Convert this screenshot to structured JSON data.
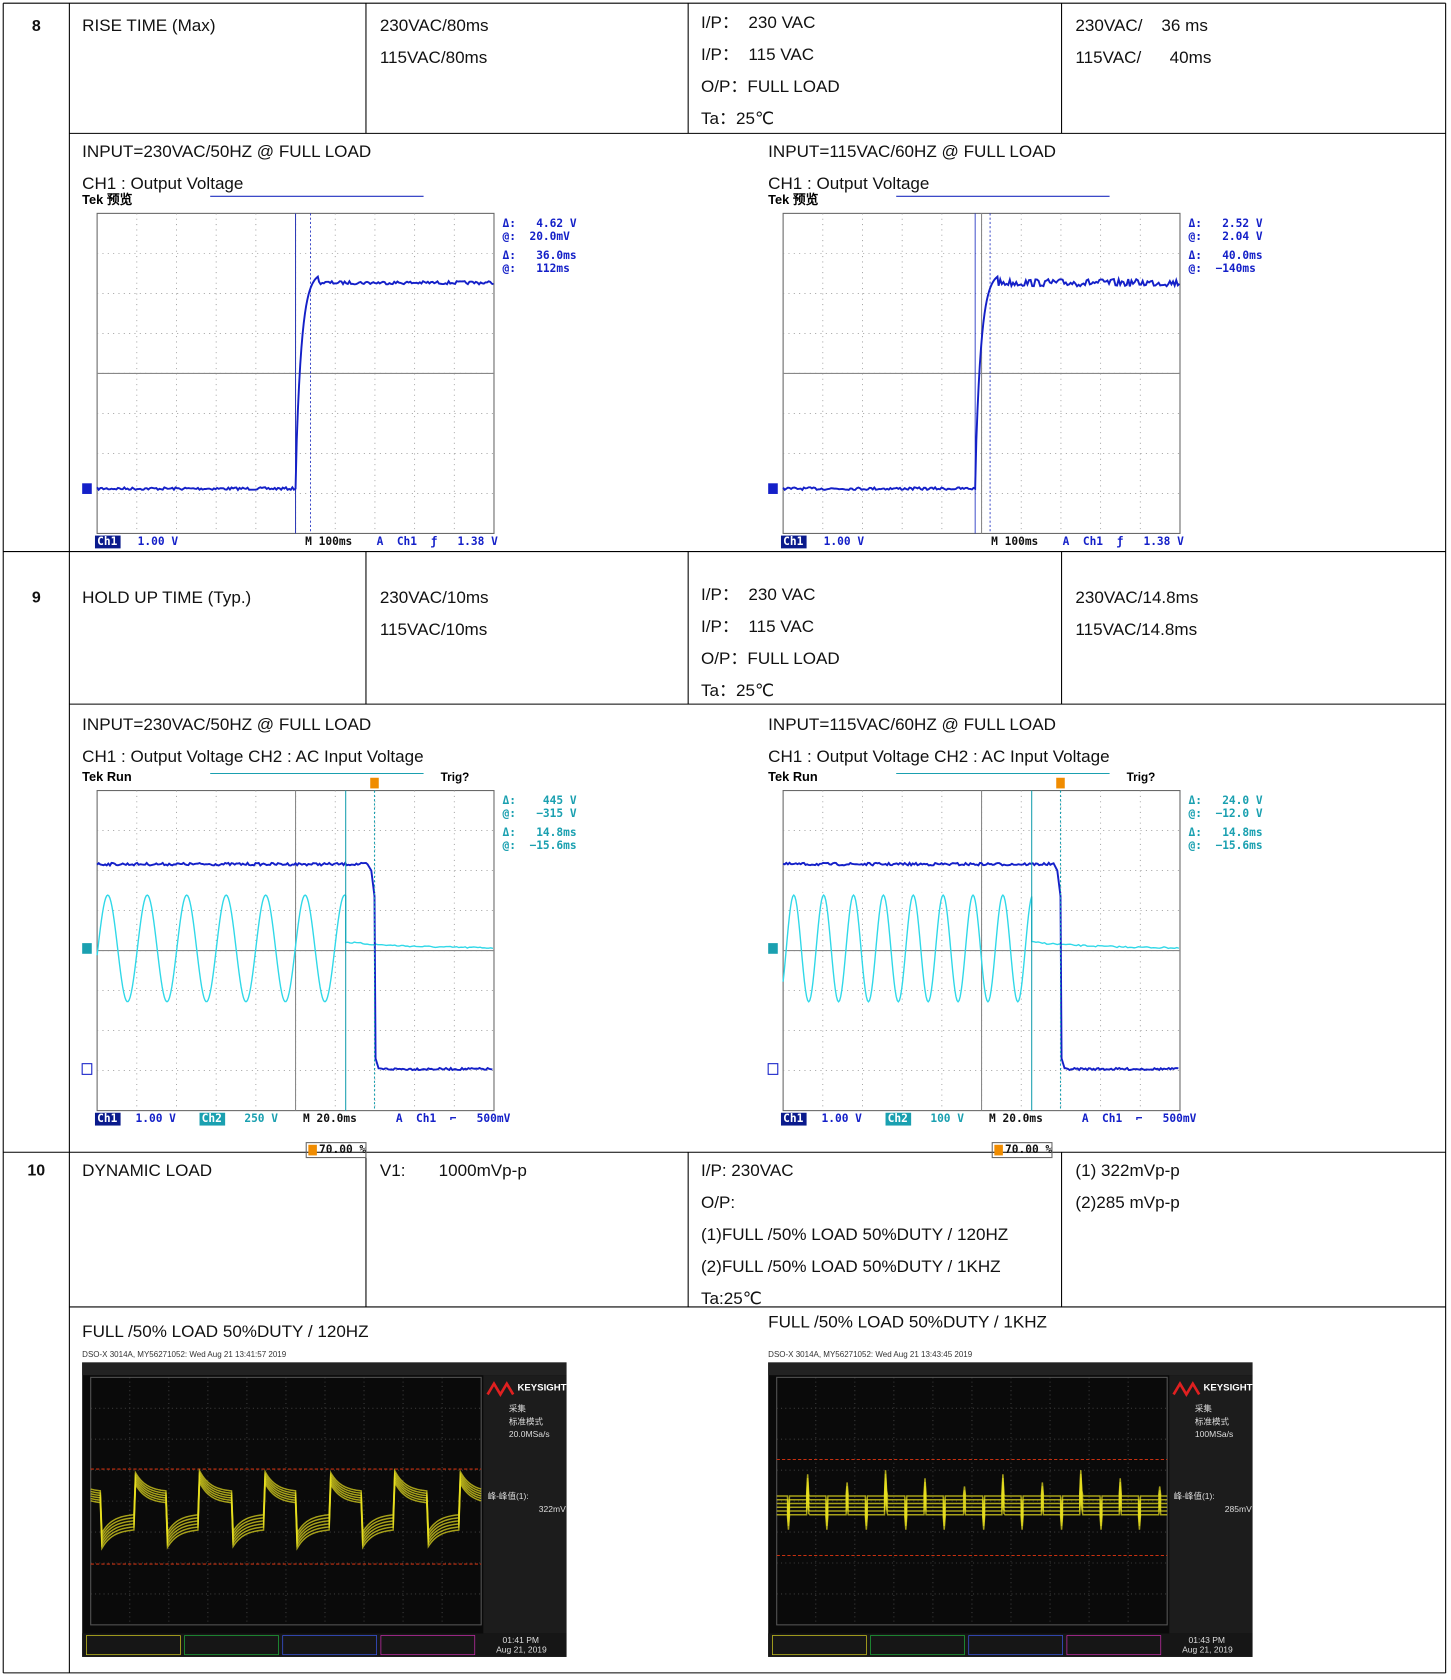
{
  "rows": [
    {
      "number": "8",
      "item": "RISE TIME (Max)",
      "spec": [
        "230VAC/80ms",
        "115VAC/80ms"
      ],
      "conditions": [
        "I/P：  230 VAC",
        "I/P：  115 VAC",
        "O/P：FULL LOAD",
        "Ta：25℃"
      ],
      "result": [
        "230VAC/    36 ms",
        "115VAC/      40ms"
      ],
      "figures": [
        {
          "caption": [
            "INPUT=230VAC/50HZ @ FULL LOAD",
            "CH1 : Output Voltage"
          ],
          "scope": {
            "header": "Tek 预览",
            "readouts": [
              "Δ:   4.62 V",
              "@:  20.0mV",
              "Δ:   36.0ms",
              "@:   112ms"
            ],
            "footer": [
              "Ch1",
              "1.00 V",
              "M 100ms",
              "A  Ch1  ƒ   1.38 V"
            ]
          }
        },
        {
          "caption": [
            "INPUT=115VAC/60HZ @ FULL LOAD",
            "CH1 : Output Voltage"
          ],
          "scope": {
            "header": "Tek 预览",
            "readouts": [
              "Δ:   2.52 V",
              "@:   2.04 V",
              "Δ:   40.0ms",
              "@:  −140ms"
            ],
            "footer": [
              "Ch1",
              "1.00 V",
              "M 100ms",
              "A  Ch1  ƒ   1.38 V"
            ]
          }
        }
      ]
    },
    {
      "number": "9",
      "item": "HOLD UP TIME (Typ.)",
      "spec": [
        "230VAC/10ms",
        "115VAC/10ms"
      ],
      "conditions": [
        "I/P：  230 VAC",
        "I/P：  115 VAC",
        "O/P：FULL LOAD",
        "Ta：25℃"
      ],
      "result": [
        "230VAC/14.8ms",
        "115VAC/14.8ms"
      ],
      "figures": [
        {
          "caption": [
            "INPUT=230VAC/50HZ @ FULL LOAD",
            "CH1 : Output Voltage CH2 : AC Input Voltage"
          ],
          "scope": {
            "header": "Tek Run",
            "trigger": "Trig?",
            "readouts": [
              "Δ:    445 V",
              "@:   −315 V",
              "Δ:   14.8ms",
              "@:  −15.6ms"
            ],
            "footer": [
              "Ch1",
              "1.00 V",
              "Ch2",
              "250 V",
              "M 20.0ms",
              "A  Ch1  ⌐   500mV"
            ],
            "marker": "70.00 %"
          }
        },
        {
          "caption": [
            "INPUT=115VAC/60HZ @ FULL LOAD",
            "CH1 : Output Voltage CH2 : AC Input Voltage"
          ],
          "scope": {
            "header": "Tek Run",
            "trigger": "Trig?",
            "readouts": [
              "Δ:   24.0 V",
              "@:  −12.0 V",
              "Δ:   14.8ms",
              "@:  −15.6ms"
            ],
            "footer": [
              "Ch1",
              "1.00 V",
              "Ch2",
              "100 V",
              "M 20.0ms",
              "A  Ch1  ⌐   500mV"
            ],
            "marker": "70.00 %"
          }
        }
      ]
    },
    {
      "number": "10",
      "item": "DYNAMIC LOAD",
      "spec": [
        "V1:       1000mVp-p"
      ],
      "conditions": [
        "I/P: 230VAC",
        "O/P:",
        "(1)FULL /50% LOAD 50%DUTY / 120HZ",
        "(2)FULL /50% LOAD 50%DUTY / 1KHZ",
        "Ta:25℃"
      ],
      "result": [
        "(1) 322mVp-p",
        "(2)285 mVp-p"
      ],
      "figures": [
        {
          "caption": [
            "FULL /50% LOAD 50%DUTY / 120HZ"
          ],
          "scope": {
            "header": "DSO-X 3014A, MY56271052: Wed Aug 21 13:41:57 2019",
            "brand": "KEYSIGHT",
            "panel": [
              "采集",
              "标准模式",
              "20.0MSa/s",
              "峰-峰值(1):",
              "322mV"
            ],
            "footer": [
              "01:41 PM",
              "Aug 21, 2019"
            ]
          }
        },
        {
          "caption": [
            "FULL /50% LOAD 50%DUTY / 1KHZ"
          ],
          "scope": {
            "header": "DSO-X 3014A, MY56271052: Wed Aug 21 13:43:45 2019",
            "brand": "KEYSIGHT",
            "panel": [
              "采集",
              "标准模式",
              "100MSa/s",
              "峰-峰值(1):",
              "285mV"
            ],
            "footer": [
              "01:43 PM",
              "Aug 21, 2019"
            ]
          }
        }
      ]
    }
  ]
}
